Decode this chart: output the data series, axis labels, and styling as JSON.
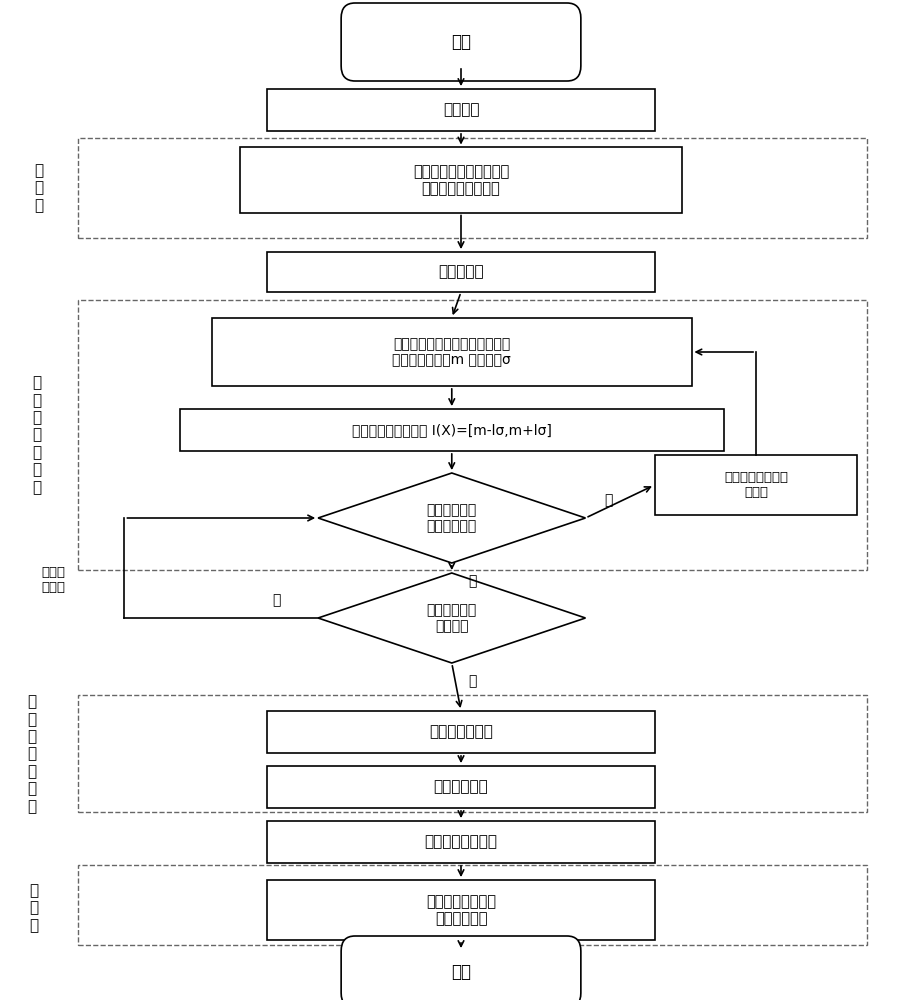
{
  "bg_color": "#ffffff",
  "nodes": {
    "start": {
      "text": "开始"
    },
    "input": {
      "text": "图像输入"
    },
    "preprocess": {
      "text": "提取脑组织、去头骨头皮\n偏差场校正、去噪声"
    },
    "seed": {
      "text": "获取种子点"
    },
    "calc_mean": {
      "text": "计算种子点周围邻域内灰度、梯\n度属性的平均值m 、标准差σ"
    },
    "define_range": {
      "text": "定义相似灰度的范围 I(X)=[m-lσ,m+lσ]"
    },
    "check_neighbor": {
      "text": "相邻像素点是\n否在此范围内"
    },
    "include_pixel": {
      "text": "将此像素点包含入\n该区域"
    },
    "check_iter": {
      "text": "是否到达最大\n迭代次数"
    },
    "calc_fuzzy": {
      "text": "计算模糊亲和度"
    },
    "auto_thresh": {
      "text": "自动选取阈值"
    },
    "extract_thal": {
      "text": "提取丘脑目标区域"
    },
    "postprocess": {
      "text": "洞穴填充法结合数\n学形态学优化"
    },
    "end": {
      "text": "结束"
    }
  }
}
